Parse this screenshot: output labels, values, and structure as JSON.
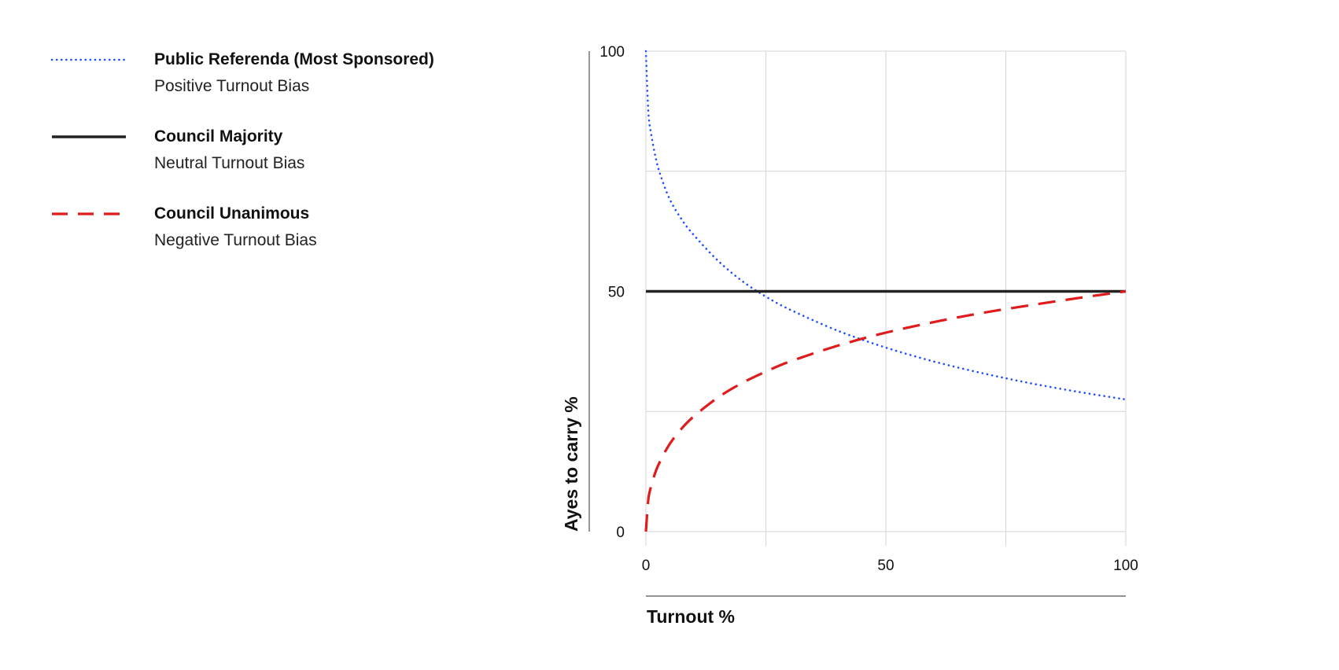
{
  "chart_data": {
    "type": "line",
    "xlabel": "Turnout %",
    "ylabel": "Ayes to carry %",
    "xlim": [
      0,
      100
    ],
    "ylim": [
      0,
      100
    ],
    "xticks": [
      "0",
      "50",
      "100"
    ],
    "yticks": [
      "0",
      "50",
      "100"
    ],
    "grid": true,
    "legend_position": "left",
    "series": [
      {
        "key": "referenda",
        "name": "Public Referenda (Most Sponsored)",
        "subtitle": "Positive Turnout Bias",
        "style": "dotted",
        "color": "#1f4fff",
        "x": [
          0,
          0.5,
          1,
          2,
          3,
          5,
          7.5,
          10,
          15,
          20,
          25,
          30,
          40,
          50,
          60,
          70,
          80,
          90,
          100
        ],
        "y": [
          100,
          87.6,
          83.3,
          78.0,
          74.3,
          69.1,
          64.9,
          61.7,
          56.4,
          52.2,
          48.9,
          46.2,
          41.8,
          38.3,
          35.4,
          33.0,
          30.9,
          29.1,
          27.5
        ]
      },
      {
        "key": "majority",
        "name": "Council Majority",
        "subtitle": "Neutral Turnout Bias",
        "style": "solid",
        "color": "#222222",
        "x": [
          0,
          100
        ],
        "y": [
          50,
          50
        ]
      },
      {
        "key": "unanimous",
        "name": "Council Unanimous",
        "subtitle": "Negative Turnout Bias",
        "style": "dashed",
        "color": "#e01b1b",
        "x": [
          0,
          0.5,
          1,
          2,
          3,
          5,
          7.5,
          10,
          15,
          20,
          25,
          30,
          40,
          50,
          60,
          70,
          80,
          90,
          100
        ],
        "y": [
          0,
          6.6,
          9.1,
          12.4,
          14.7,
          18.3,
          21.5,
          24.0,
          27.9,
          30.9,
          33.3,
          35.4,
          38.7,
          41.4,
          43.6,
          45.5,
          47.1,
          48.6,
          50
        ]
      }
    ]
  }
}
